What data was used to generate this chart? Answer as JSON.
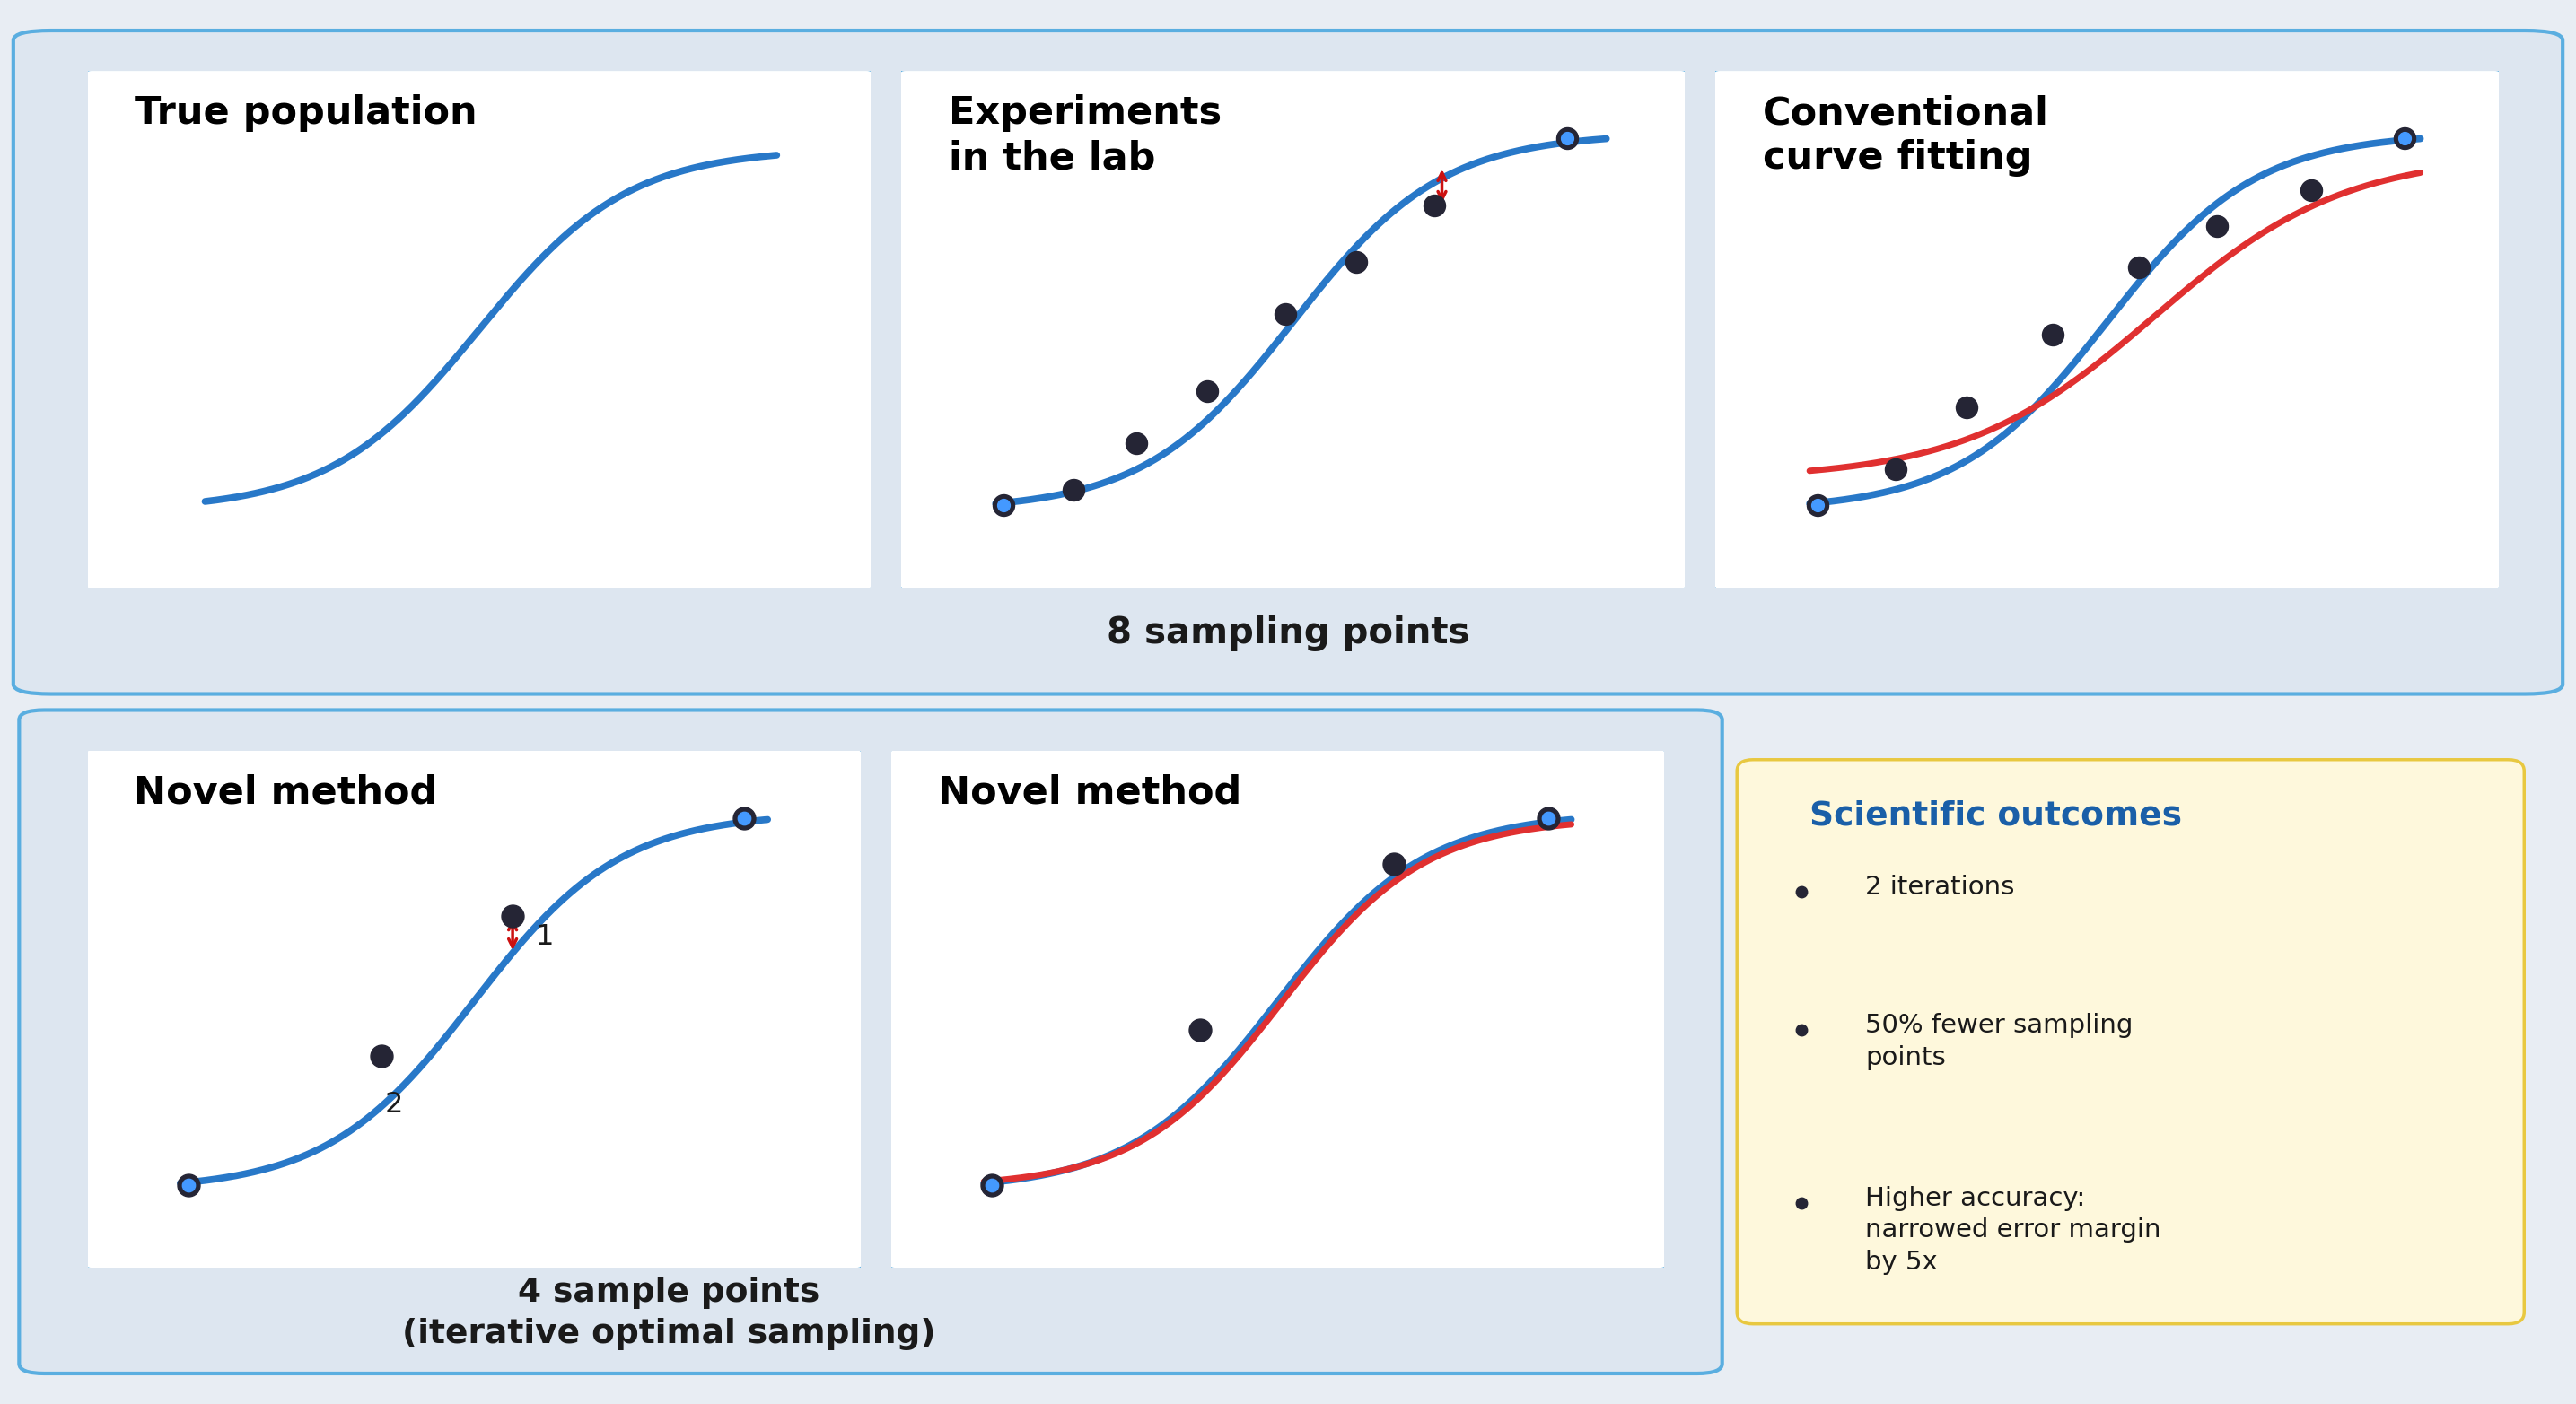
{
  "bg_outer": "#e8edf3",
  "bg_panel": "#dde6f0",
  "bg_box": "#ffffff",
  "bg_sci": "#fef8dc",
  "border_outer": "#5aaee0",
  "border_inner": "#5aaee0",
  "border_sci": "#e8c840",
  "line_blue": "#2878c8",
  "line_red": "#e03030",
  "dot_dark": "#252535",
  "dot_blue": "#4499ff",
  "arrow_red": "#cc1111",
  "title_color": "#000000",
  "sci_title_color": "#1a5fa8",
  "text_color": "#1a1a1a",
  "panel1_title": "True population",
  "panel2_title": "Experiments\nin the lab",
  "panel3_title": "Conventional\ncurve fitting",
  "panel4_title": "Novel method",
  "panel5_title": "Novel method",
  "caption2": "8 sampling points",
  "caption45": "4 sample points\n(iterative optimal sampling)",
  "sci_title": "Scientific outcomes",
  "sci_bullets": [
    "2 iterations",
    "50% fewer sampling\npoints",
    "Higher accuracy:\nnarrowed error margin\nby 5x"
  ],
  "lw_curve": 5.5,
  "lw_red": 5.0,
  "dot_size": 260
}
